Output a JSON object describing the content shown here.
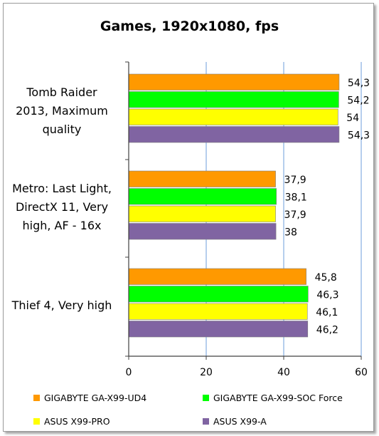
{
  "chart_data": {
    "type": "bar",
    "orientation": "horizontal",
    "title": "Games, 1920x1080, fps",
    "categories": [
      [
        "Tomb Raider",
        "2013, Maximum",
        "quality"
      ],
      [
        "Metro: Last Light,",
        "DirectX 11, Very",
        "high, AF - 16x"
      ],
      [
        "Thief 4, Very high"
      ]
    ],
    "series": [
      {
        "name": "GIGABYTE GA-X99-UD4",
        "color": "#ff9900",
        "values": [
          54.3,
          37.9,
          45.8
        ],
        "labels": [
          "54,3",
          "37,9",
          "45,8"
        ]
      },
      {
        "name": "GIGABYTE GA-X99-SOC Force",
        "color": "#00ff00",
        "values": [
          54.2,
          38.1,
          46.3
        ],
        "labels": [
          "54,2",
          "38,1",
          "46,3"
        ]
      },
      {
        "name": "ASUS X99-PRO",
        "color": "#ffff00",
        "values": [
          54,
          37.9,
          46.1
        ],
        "labels": [
          "54",
          "37,9",
          "46,1"
        ]
      },
      {
        "name": "ASUS X99-A",
        "color": "#8064a2",
        "values": [
          54.3,
          38,
          46.2
        ],
        "labels": [
          "54,3",
          "38",
          "46,2"
        ]
      }
    ],
    "xlim": [
      0,
      60
    ],
    "xticks": [
      0,
      20,
      40,
      60
    ],
    "grid": true,
    "legend_position": "bottom"
  }
}
